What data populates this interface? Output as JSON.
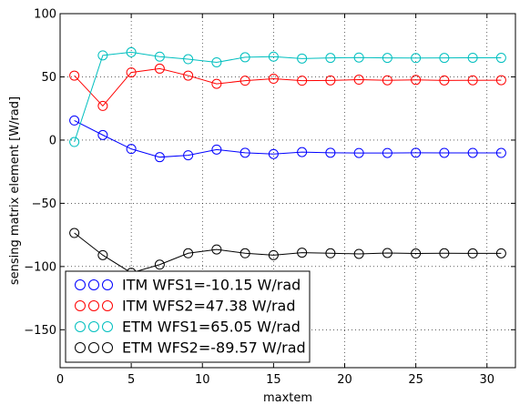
{
  "chart_data": {
    "type": "line",
    "title": "",
    "xlabel": "maxtem",
    "ylabel": "sensing matrix element [W/rad]",
    "xlim": [
      0,
      32
    ],
    "ylim": [
      -180,
      100
    ],
    "xticks": [
      0,
      5,
      10,
      15,
      20,
      25,
      30
    ],
    "yticks": [
      100,
      50,
      0,
      -50,
      -100,
      -150
    ],
    "grid": true,
    "legend_position": "lower-left",
    "x": [
      1,
      3,
      5,
      7,
      9,
      11,
      13,
      15,
      17,
      19,
      21,
      23,
      25,
      27,
      29,
      31
    ],
    "series": [
      {
        "name": "ITM WFS1=-10.15 W/rad",
        "color": "#0000ff",
        "values": [
          15.5,
          4,
          -7,
          -13.5,
          -12,
          -7.5,
          -10,
          -11,
          -9.5,
          -10,
          -10.2,
          -10.2,
          -10,
          -10.1,
          -10.1,
          -10.15
        ]
      },
      {
        "name": "ITM WFS2=47.38 W/rad",
        "color": "#ff0000",
        "values": [
          51,
          27,
          53.5,
          56.5,
          51,
          44.5,
          47,
          48.5,
          47,
          47.2,
          47.8,
          47.3,
          47.6,
          47.2,
          47.3,
          47.4
        ]
      },
      {
        "name": "ETM WFS1=65.05 W/rad",
        "color": "#00bfbf",
        "values": [
          -1.5,
          67,
          69.5,
          66,
          64,
          61.5,
          65.5,
          66,
          64.5,
          65,
          65.3,
          65,
          64.9,
          65,
          65.1,
          65.05
        ]
      },
      {
        "name": "ETM WFS2=-89.57 W/rad",
        "color": "#000000",
        "values": [
          -73.5,
          -91,
          -105,
          -98.5,
          -89.5,
          -86.5,
          -89.5,
          -91,
          -89,
          -89.5,
          -90,
          -89.3,
          -89.7,
          -89.5,
          -89.6,
          -89.57
        ]
      }
    ]
  }
}
